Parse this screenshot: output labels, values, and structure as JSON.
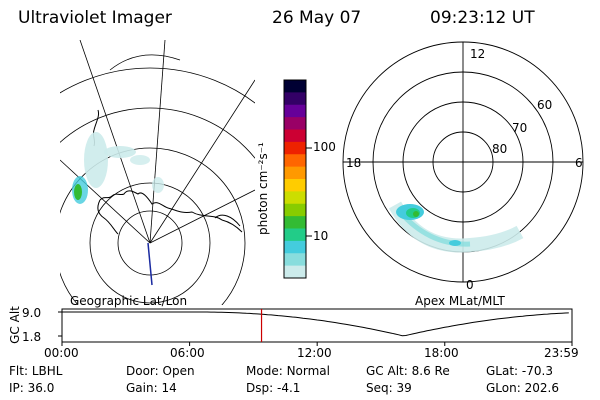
{
  "header": {
    "instrument": "Ultraviolet Imager",
    "date": "26 May 07",
    "time": "09:23:12 UT"
  },
  "left_panel": {
    "caption": "Geographic Lat/Lon"
  },
  "colorbar": {
    "label": "photon cm⁻²s⁻¹",
    "ticks": [
      "100",
      "10"
    ],
    "scale": "log",
    "colors": [
      "#000033",
      "#330066",
      "#660099",
      "#990066",
      "#cc0033",
      "#ee2200",
      "#ff6600",
      "#ff9900",
      "#ffcc00",
      "#ccdd00",
      "#88cc00",
      "#33bb33",
      "#22cc88",
      "#44ccdd",
      "#88dddd",
      "#ccebeb"
    ]
  },
  "right_panel": {
    "caption": "Apex MLat/MLT",
    "mlt_labels": {
      "top": "12",
      "left": "18",
      "right": "6",
      "bottom": "0"
    },
    "lat_labels": [
      "60",
      "70",
      "80"
    ]
  },
  "orbit_plot": {
    "ylabel": "GC Alt",
    "y_ticks": [
      "9.0",
      "1.8"
    ],
    "x_ticks": [
      "00:00",
      "06:00",
      "12:00",
      "18:00",
      "23:59"
    ],
    "current_time_marker": "09:23",
    "line_color": "#000000",
    "marker_color": "#cc0000"
  },
  "status": [
    {
      "label": "Flt:",
      "value": "LBHL"
    },
    {
      "label": "Door:",
      "value": "Open"
    },
    {
      "label": "Mode:",
      "value": "Normal"
    },
    {
      "label": "GC Alt:",
      "value": "8.6 Re"
    },
    {
      "label": "GLat:",
      "value": "-70.3"
    },
    {
      "label": "IP:",
      "value": "36.0"
    },
    {
      "label": "Gain:",
      "value": "14"
    },
    {
      "label": "Dsp:",
      "value": "-4.1"
    },
    {
      "label": "Seq:",
      "value": "39"
    },
    {
      "label": "GLon:",
      "value": "202.6"
    }
  ]
}
